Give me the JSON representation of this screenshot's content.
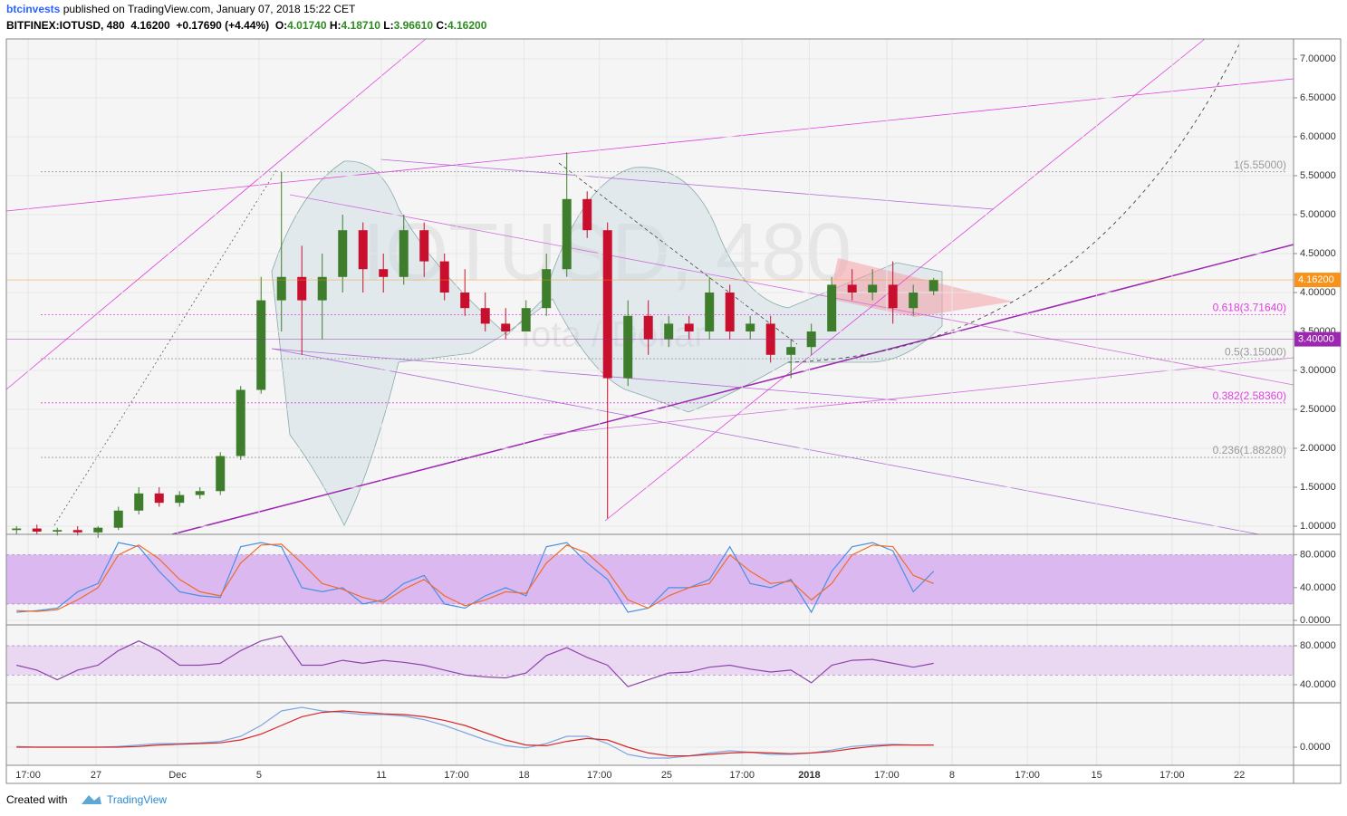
{
  "header": {
    "author": "btcinvests",
    "published": " published on TradingView.com, January 07, 2018 15:22 CET",
    "segments": [
      {
        "text": "BITFINEX:IOTUSD, 480  4.16200  +0.17690 (+4.44%)  ",
        "color": "#000000"
      },
      {
        "text": "O:",
        "color": "#000000"
      },
      {
        "text": "4.01740",
        "color": "#2e8b22"
      },
      {
        "text": " H:",
        "color": "#000000"
      },
      {
        "text": "4.18710",
        "color": "#2e8b22"
      },
      {
        "text": " L:",
        "color": "#000000"
      },
      {
        "text": "3.96610",
        "color": "#2e8b22"
      },
      {
        "text": " C:",
        "color": "#000000"
      },
      {
        "text": "4.16200",
        "color": "#2e8b22"
      }
    ]
  },
  "watermark": {
    "symbol": "IOTUSD, 480",
    "name": "Iota / Dollar"
  },
  "footer": {
    "created": "Created with",
    "brand": "TradingView"
  },
  "chart_data": [
    {
      "type": "candlestick",
      "up_color": "#3e7d2c",
      "down_color": "#c8102e",
      "ohlc": [
        [
          0.95,
          1.0,
          0.9,
          0.97
        ],
        [
          0.97,
          1.02,
          0.9,
          0.93
        ],
        [
          0.93,
          0.98,
          0.88,
          0.95
        ],
        [
          0.95,
          1.0,
          0.88,
          0.92
        ],
        [
          0.92,
          1.0,
          0.85,
          0.98
        ],
        [
          0.98,
          1.25,
          0.95,
          1.2
        ],
        [
          1.2,
          1.5,
          1.15,
          1.42
        ],
        [
          1.42,
          1.5,
          1.25,
          1.3
        ],
        [
          1.3,
          1.45,
          1.25,
          1.4
        ],
        [
          1.4,
          1.5,
          1.35,
          1.45
        ],
        [
          1.45,
          1.95,
          1.4,
          1.9
        ],
        [
          1.9,
          2.8,
          1.85,
          2.75
        ],
        [
          2.75,
          4.2,
          2.7,
          3.9
        ],
        [
          3.9,
          5.55,
          3.5,
          4.2
        ],
        [
          4.2,
          4.6,
          3.2,
          3.9
        ],
        [
          3.9,
          4.5,
          3.4,
          4.2
        ],
        [
          4.2,
          5.0,
          4.0,
          4.8
        ],
        [
          4.8,
          4.9,
          4.0,
          4.3
        ],
        [
          4.3,
          4.5,
          4.0,
          4.2
        ],
        [
          4.2,
          5.0,
          4.1,
          4.8
        ],
        [
          4.8,
          4.9,
          4.2,
          4.4
        ],
        [
          4.4,
          4.5,
          3.9,
          4.0
        ],
        [
          4.0,
          4.3,
          3.7,
          3.8
        ],
        [
          3.8,
          4.0,
          3.5,
          3.6
        ],
        [
          3.6,
          3.8,
          3.4,
          3.5
        ],
        [
          3.5,
          3.9,
          3.5,
          3.8
        ],
        [
          3.8,
          4.5,
          3.7,
          4.3
        ],
        [
          4.3,
          5.8,
          4.2,
          5.2
        ],
        [
          5.2,
          5.3,
          4.7,
          4.8
        ],
        [
          4.8,
          4.9,
          1.1,
          2.9
        ],
        [
          2.9,
          3.9,
          2.8,
          3.7
        ],
        [
          3.7,
          3.9,
          3.2,
          3.4
        ],
        [
          3.4,
          3.7,
          3.3,
          3.6
        ],
        [
          3.6,
          3.7,
          3.4,
          3.5
        ],
        [
          3.5,
          4.2,
          3.4,
          4.0
        ],
        [
          4.0,
          4.1,
          3.4,
          3.5
        ],
        [
          3.5,
          3.7,
          3.4,
          3.6
        ],
        [
          3.6,
          3.7,
          3.1,
          3.2
        ],
        [
          3.2,
          3.4,
          2.9,
          3.3
        ],
        [
          3.3,
          3.6,
          3.2,
          3.5
        ],
        [
          3.5,
          4.2,
          3.5,
          4.1
        ],
        [
          4.1,
          4.3,
          3.9,
          4.0
        ],
        [
          4.0,
          4.3,
          3.9,
          4.1
        ],
        [
          4.1,
          4.4,
          3.6,
          3.8
        ],
        [
          3.8,
          4.1,
          3.7,
          4.0
        ],
        [
          4.0174,
          4.1871,
          3.9661,
          4.162
        ]
      ],
      "xlim": [
        0,
        63.16
      ],
      "xticks": [
        {
          "value": 1.07,
          "label": "17:00"
        },
        {
          "value": 4.4,
          "label": "27"
        },
        {
          "value": 8.4,
          "label": "Dec"
        },
        {
          "value": 12.4,
          "label": "5"
        },
        {
          "value": 18.4,
          "label": "11"
        },
        {
          "value": 22.09,
          "label": "17:00"
        },
        {
          "value": 25.4,
          "label": "18"
        },
        {
          "value": 29.1,
          "label": "17:00"
        },
        {
          "value": 32.4,
          "label": "25"
        },
        {
          "value": 36.1,
          "label": "17:00"
        },
        {
          "value": 39.4,
          "label": "2018"
        },
        {
          "value": 43.2,
          "label": "17:00"
        },
        {
          "value": 46.4,
          "label": "8"
        },
        {
          "value": 50.1,
          "label": "17:00"
        },
        {
          "value": 53.5,
          "label": "15"
        },
        {
          "value": 57.2,
          "label": "17:00"
        },
        {
          "value": 60.5,
          "label": "22"
        }
      ],
      "ylim": [
        0.895,
        7.256
      ],
      "yticks": [
        {
          "value": 1,
          "label": "1.00000"
        },
        {
          "value": 1.5,
          "label": "1.50000"
        },
        {
          "value": 2,
          "label": "2.00000"
        },
        {
          "value": 2.5,
          "label": "2.50000"
        },
        {
          "value": 3,
          "label": "3.00000"
        },
        {
          "value": 3.5,
          "label": "3.50000"
        },
        {
          "value": 4,
          "label": "4.00000"
        },
        {
          "value": 4.5,
          "label": "4.50000"
        },
        {
          "value": 5,
          "label": "5.00000"
        },
        {
          "value": 5.5,
          "label": "5.50000"
        },
        {
          "value": 6,
          "label": "6.00000"
        },
        {
          "value": 6.5,
          "label": "6.50000"
        },
        {
          "value": 7,
          "label": "7.00000"
        }
      ],
      "fib": [
        {
          "value": 5.55,
          "label": "1(5.55000)",
          "color": "#999999"
        },
        {
          "value": 3.7164,
          "label": "0.618(3.71640)",
          "color": "#e040e0"
        },
        {
          "value": 3.15,
          "label": "0.5(3.15000)",
          "color": "#999999"
        },
        {
          "value": 2.5836,
          "label": "0.382(2.58360)",
          "color": "#e040e0"
        },
        {
          "value": 1.8828,
          "label": "0.236(1.88280)",
          "color": "#999999"
        }
      ],
      "price_tags": [
        {
          "value": 4.162,
          "label": "4.16200",
          "color": "#f7931a"
        },
        {
          "value": 3.4,
          "label": "3.40000",
          "color": "#9c27b0"
        }
      ]
    },
    {
      "type": "line",
      "ylim": [
        -5.5,
        104
      ],
      "yticks": [
        {
          "value": 0,
          "label": "0.0000"
        },
        {
          "value": 40,
          "label": "40.0000"
        },
        {
          "value": 80,
          "label": "80.0000"
        }
      ],
      "band": [
        20,
        80
      ],
      "band_color": "#dcb8f0",
      "series": [
        {
          "color": "#4a90e2",
          "values": [
            10,
            12,
            15,
            35,
            45,
            95,
            90,
            60,
            35,
            30,
            28,
            90,
            95,
            90,
            40,
            35,
            40,
            20,
            25,
            45,
            55,
            20,
            15,
            30,
            40,
            30,
            90,
            95,
            70,
            50,
            10,
            15,
            40,
            40,
            50,
            90,
            45,
            40,
            50,
            10,
            60,
            90,
            95,
            85,
            35,
            60
          ]
        },
        {
          "color": "#f06b2a",
          "values": [
            12,
            11,
            13,
            25,
            40,
            80,
            92,
            75,
            50,
            35,
            30,
            70,
            92,
            93,
            70,
            45,
            38,
            28,
            22,
            38,
            50,
            30,
            18,
            25,
            35,
            33,
            70,
            92,
            82,
            60,
            25,
            15,
            30,
            40,
            45,
            80,
            60,
            45,
            48,
            25,
            45,
            80,
            92,
            90,
            55,
            45
          ]
        }
      ]
    },
    {
      "type": "line",
      "ylim": [
        21.4,
        100.5
      ],
      "yticks": [
        {
          "value": 40,
          "label": "40.0000"
        },
        {
          "value": 80,
          "label": "80.0000"
        }
      ],
      "band": [
        50,
        80
      ],
      "band_color": "#ead8f2",
      "series": [
        {
          "color": "#8e44ad",
          "values": [
            60,
            55,
            45,
            55,
            60,
            75,
            85,
            75,
            60,
            60,
            62,
            75,
            85,
            90,
            60,
            60,
            65,
            62,
            65,
            63,
            60,
            55,
            50,
            48,
            47,
            52,
            70,
            78,
            68,
            60,
            38,
            45,
            52,
            53,
            58,
            60,
            56,
            53,
            55,
            42,
            60,
            65,
            66,
            62,
            58,
            62
          ]
        }
      ]
    },
    {
      "type": "line",
      "ylim": [
        -0.25,
        0.6
      ],
      "yticks": [
        {
          "value": 0,
          "label": "0.0000"
        }
      ],
      "series": [
        {
          "color": "#7fa7e0",
          "values": [
            0.01,
            0,
            0,
            0,
            0,
            0.01,
            0.03,
            0.05,
            0.05,
            0.06,
            0.08,
            0.15,
            0.3,
            0.5,
            0.55,
            0.5,
            0.48,
            0.45,
            0.45,
            0.43,
            0.38,
            0.3,
            0.2,
            0.1,
            0.02,
            -0.01,
            0.05,
            0.15,
            0.15,
            0.05,
            -0.1,
            -0.15,
            -0.15,
            -0.12,
            -0.08,
            -0.05,
            -0.07,
            -0.1,
            -0.1,
            -0.08,
            -0.04,
            0.01,
            0.03,
            0.04,
            0.03,
            0.03
          ]
        },
        {
          "color": "#d62728",
          "values": [
            0,
            0,
            0,
            0,
            0,
            0,
            0.01,
            0.03,
            0.04,
            0.05,
            0.06,
            0.1,
            0.18,
            0.3,
            0.42,
            0.48,
            0.5,
            0.48,
            0.46,
            0.45,
            0.42,
            0.37,
            0.3,
            0.2,
            0.1,
            0.03,
            0.02,
            0.08,
            0.12,
            0.1,
            0,
            -0.08,
            -0.12,
            -0.12,
            -0.1,
            -0.08,
            -0.07,
            -0.08,
            -0.09,
            -0.08,
            -0.06,
            -0.02,
            0.01,
            0.03,
            0.03,
            0.03
          ]
        }
      ]
    }
  ]
}
